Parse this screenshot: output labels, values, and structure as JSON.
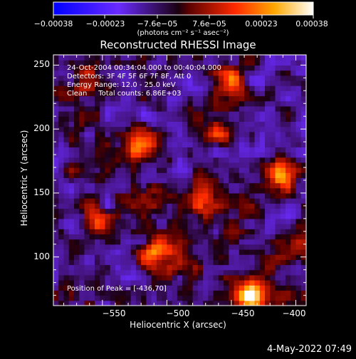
{
  "chart_data": {
    "type": "heatmap",
    "title": "Reconstructed RHESSI Image",
    "xlabel": "Heliocentric X (arcsec)",
    "ylabel": "Heliocentric Y (arcsec)",
    "xlim": [
      -588,
      -392
    ],
    "ylim": [
      62,
      258
    ],
    "x_ticks": [
      -550,
      -500,
      -450,
      -400
    ],
    "y_ticks": [
      100,
      150,
      200,
      250
    ],
    "x_tick_labels": [
      "−550",
      "−500",
      "−450",
      "−400"
    ],
    "y_tick_labels": [
      "100",
      "150",
      "200",
      "250"
    ],
    "colorbar": {
      "range": [
        -0.00038,
        0.00038
      ],
      "ticks": [
        -0.00038,
        -0.00023,
        -7.6e-05,
        7.6e-05,
        0.00023,
        0.00038
      ],
      "tick_labels": [
        "−0.00038",
        "−0.00023",
        "−7.6e−05",
        "7.6e−05",
        "0.00023",
        "0.00038"
      ],
      "units_label": "(photons cm⁻² s⁻¹ asec⁻²)"
    },
    "annotations": [
      "24-Oct-2004 00:34:04.000 to 00:40:04.000",
      "Detectors: 3F 4F 5F 6F 7F 8F, Att 0",
      "Energy Range: 12.0 - 25.0 keV",
      "Clean     Total counts: 6.86E+03"
    ],
    "peak_label": "Position of Peak = [-436,70]",
    "peak_position": [
      -436,
      70
    ],
    "hotspots": [
      {
        "x": -436,
        "y": 70,
        "value": 0.00038
      },
      {
        "x": -508,
        "y": 103,
        "value": 0.0003
      },
      {
        "x": -412,
        "y": 163,
        "value": 0.00028
      },
      {
        "x": -454,
        "y": 240,
        "value": 0.00025
      },
      {
        "x": -522,
        "y": 188,
        "value": 0.00022
      },
      {
        "x": -552,
        "y": 125,
        "value": 0.00019
      },
      {
        "x": -405,
        "y": 108,
        "value": 0.0002
      },
      {
        "x": -470,
        "y": 140,
        "value": 0.00017
      },
      {
        "x": -485,
        "y": 92,
        "value": 0.00015
      },
      {
        "x": -574,
        "y": 70,
        "value": 0.00014
      },
      {
        "x": -560,
        "y": 235,
        "value": 0.00012
      },
      {
        "x": -515,
        "y": 148,
        "value": 0.00016
      },
      {
        "x": -460,
        "y": 198,
        "value": 0.00014
      }
    ]
  },
  "footer": {
    "date_label": "4-May-2022 07:49"
  },
  "colors": {
    "background": "#000000",
    "text": "#ffffff"
  }
}
